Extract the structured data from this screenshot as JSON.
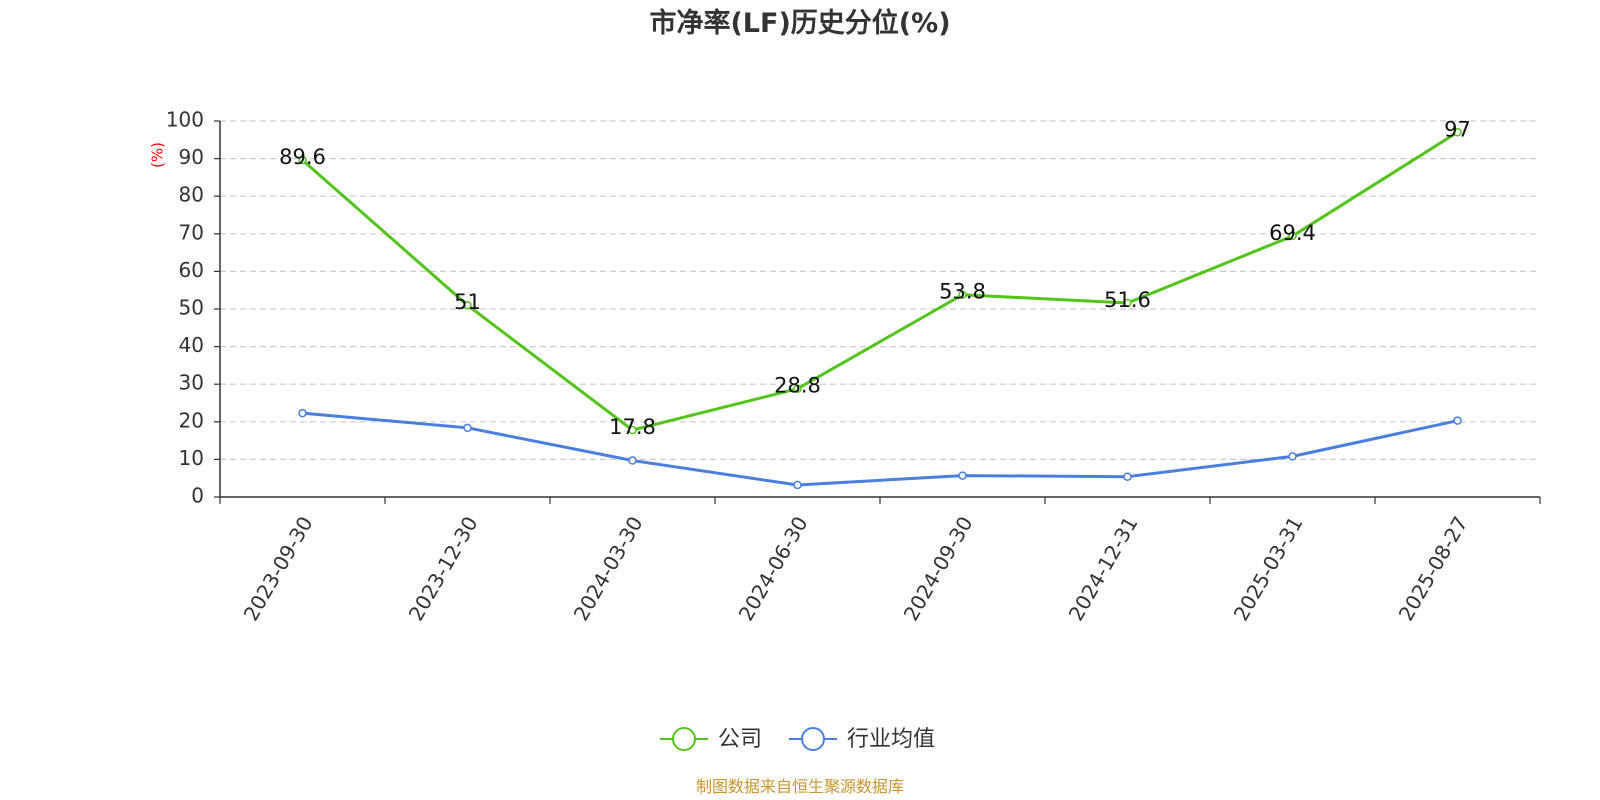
{
  "chart_data": {
    "type": "line",
    "title": "市净率(LF)历史分位(%)",
    "ylabel": "(%)",
    "ylim": [
      0,
      100
    ],
    "yticks": [
      0,
      10,
      20,
      30,
      40,
      50,
      60,
      70,
      80,
      90,
      100
    ],
    "grid": true,
    "legend_position": "bottom",
    "categories": [
      "2023-09-30",
      "2023-12-30",
      "2024-03-30",
      "2024-06-30",
      "2024-09-30",
      "2024-12-31",
      "2025-03-31",
      "2025-08-27"
    ],
    "series": [
      {
        "name": "公司",
        "color": "#52c41a",
        "values": [
          89.6,
          51,
          17.8,
          28.8,
          53.8,
          51.6,
          69.4,
          97
        ],
        "labels": [
          "89.6",
          "51",
          "17.8",
          "28.8",
          "53.8",
          "51.6",
          "69.4",
          "97"
        ],
        "show_labels": true
      },
      {
        "name": "行业均值",
        "color": "#4a7fdf",
        "values": [
          22.3,
          18.4,
          9.7,
          3.2,
          5.7,
          5.4,
          10.8,
          20.3
        ],
        "show_labels": false
      }
    ],
    "source": "制图数据来自恒生聚源数据库"
  }
}
